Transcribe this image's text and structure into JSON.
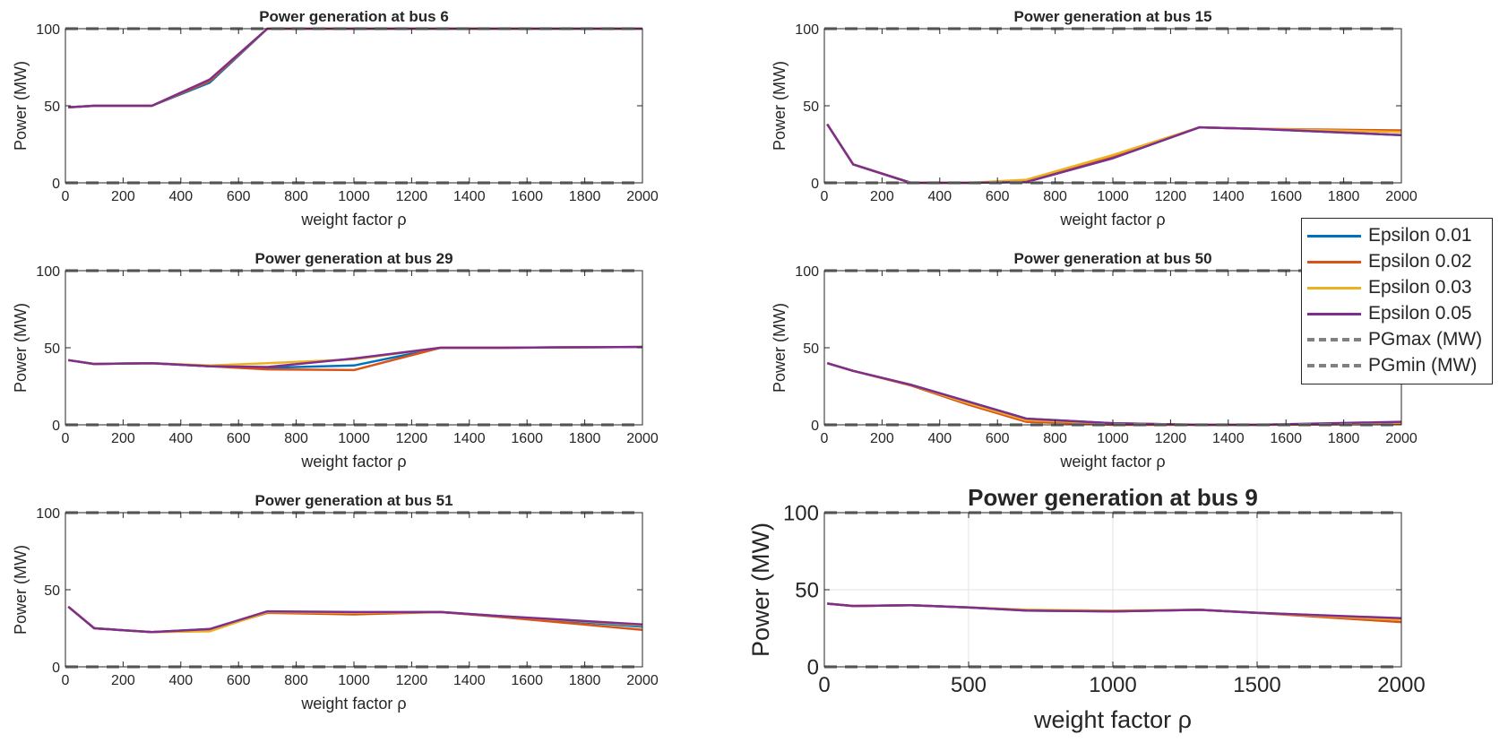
{
  "chart_data": [
    {
      "type": "line",
      "title": "Power generation at bus 6",
      "xlabel": "weight factor ρ",
      "ylabel": "Power (MW)",
      "xlim": [
        0,
        2000
      ],
      "ylim": [
        0,
        100
      ],
      "xticks": [
        0,
        200,
        400,
        600,
        800,
        1000,
        1200,
        1400,
        1600,
        1800,
        2000
      ],
      "yticks": [
        0,
        50,
        100
      ],
      "grid": false,
      "x": [
        10,
        100,
        300,
        500,
        700,
        1000,
        1300,
        1500,
        2000
      ],
      "series": [
        {
          "name": "Epsilon 0.01",
          "values": [
            49,
            50,
            50,
            65,
            100,
            100,
            100,
            100,
            100
          ]
        },
        {
          "name": "Epsilon 0.02",
          "values": [
            49,
            50,
            50,
            66,
            100,
            100,
            100,
            100,
            100
          ]
        },
        {
          "name": "Epsilon 0.03",
          "values": [
            49,
            50,
            50,
            67,
            100,
            100,
            100,
            100,
            100
          ]
        },
        {
          "name": "Epsilon 0.05",
          "values": [
            49,
            50,
            50,
            67,
            100,
            100,
            100,
            100,
            100
          ]
        }
      ],
      "pgmax": 100,
      "pgmin": 0
    },
    {
      "type": "line",
      "title": "Power generation at bus 15",
      "xlabel": "weight factor ρ",
      "ylabel": "Power (MW)",
      "xlim": [
        0,
        2000
      ],
      "ylim": [
        0,
        100
      ],
      "xticks": [
        0,
        200,
        400,
        600,
        800,
        1000,
        1200,
        1400,
        1600,
        1800,
        2000
      ],
      "yticks": [
        0,
        50,
        100
      ],
      "grid": false,
      "x": [
        10,
        100,
        300,
        500,
        700,
        1000,
        1300,
        1500,
        2000
      ],
      "series": [
        {
          "name": "Epsilon 0.01",
          "values": [
            38,
            12,
            0,
            0,
            0.5,
            16,
            36,
            35,
            31
          ]
        },
        {
          "name": "Epsilon 0.02",
          "values": [
            38,
            12,
            0,
            0,
            1,
            17,
            36,
            35,
            34
          ]
        },
        {
          "name": "Epsilon 0.03",
          "values": [
            38,
            12,
            0,
            0,
            2,
            18,
            36,
            35,
            33
          ]
        },
        {
          "name": "Epsilon 0.05",
          "values": [
            38,
            12,
            0,
            0,
            0.5,
            16,
            36,
            35,
            31
          ]
        }
      ],
      "pgmax": 100,
      "pgmin": 0
    },
    {
      "type": "line",
      "title": "Power generation at bus 29",
      "xlabel": "weight factor ρ",
      "ylabel": "Power (MW)",
      "xlim": [
        0,
        2000
      ],
      "ylim": [
        0,
        100
      ],
      "xticks": [
        0,
        200,
        400,
        600,
        800,
        1000,
        1200,
        1400,
        1600,
        1800,
        2000
      ],
      "yticks": [
        0,
        50,
        100
      ],
      "grid": false,
      "x": [
        10,
        100,
        300,
        500,
        700,
        1000,
        1300,
        1500,
        2000
      ],
      "series": [
        {
          "name": "Epsilon 0.01",
          "values": [
            42,
            39.5,
            40,
            38,
            37,
            38.5,
            50,
            50,
            50.5
          ]
        },
        {
          "name": "Epsilon 0.02",
          "values": [
            42,
            39.5,
            40,
            38,
            36,
            35.5,
            50,
            50,
            50.5
          ]
        },
        {
          "name": "Epsilon 0.03",
          "values": [
            42,
            39.5,
            40,
            38.5,
            40,
            42.5,
            50,
            50,
            50.5
          ]
        },
        {
          "name": "Epsilon 0.05",
          "values": [
            42,
            39.5,
            40,
            38,
            37.5,
            43,
            50,
            50,
            50.5
          ]
        }
      ],
      "pgmax": 100,
      "pgmin": 0
    },
    {
      "type": "line",
      "title": "Power generation at bus 50",
      "xlabel": "weight factor ρ",
      "ylabel": "Power (MW)",
      "xlim": [
        0,
        2000
      ],
      "ylim": [
        0,
        100
      ],
      "xticks": [
        0,
        200,
        400,
        600,
        800,
        1000,
        1200,
        1400,
        1600,
        1800,
        2000
      ],
      "yticks": [
        0,
        50,
        100
      ],
      "grid": false,
      "x": [
        10,
        100,
        300,
        500,
        700,
        1000,
        1300,
        1500,
        2000
      ],
      "series": [
        {
          "name": "Epsilon 0.01",
          "values": [
            40,
            35,
            26,
            15,
            4,
            1,
            0,
            0,
            1.5
          ]
        },
        {
          "name": "Epsilon 0.02",
          "values": [
            40,
            35,
            25.5,
            13,
            2,
            0,
            0,
            0,
            0.5
          ]
        },
        {
          "name": "Epsilon 0.03",
          "values": [
            40,
            35,
            26,
            14,
            3,
            1,
            0,
            0,
            1.5
          ]
        },
        {
          "name": "Epsilon 0.05",
          "values": [
            40,
            35,
            26,
            15,
            4,
            1,
            0,
            0,
            2
          ]
        }
      ],
      "pgmax": 100,
      "pgmin": 0
    },
    {
      "type": "line",
      "title": "Power generation at bus 51",
      "xlabel": "weight factor ρ",
      "ylabel": "Power (MW)",
      "xlim": [
        0,
        2000
      ],
      "ylim": [
        0,
        100
      ],
      "xticks": [
        0,
        200,
        400,
        600,
        800,
        1000,
        1200,
        1400,
        1600,
        1800,
        2000
      ],
      "yticks": [
        0,
        50,
        100
      ],
      "grid": false,
      "x": [
        10,
        100,
        300,
        500,
        700,
        1000,
        1300,
        1500,
        2000
      ],
      "series": [
        {
          "name": "Epsilon 0.01",
          "values": [
            39,
            25,
            22.5,
            24.5,
            35.5,
            35,
            35.5,
            33,
            26
          ]
        },
        {
          "name": "Epsilon 0.02",
          "values": [
            39,
            25,
            22.5,
            24,
            35,
            34,
            35.5,
            32.5,
            24
          ]
        },
        {
          "name": "Epsilon 0.03",
          "values": [
            39,
            25,
            22.5,
            23,
            35.5,
            35,
            35.5,
            33,
            27
          ]
        },
        {
          "name": "Epsilon 0.05",
          "values": [
            39,
            25,
            22.5,
            24.5,
            36,
            35.5,
            35.5,
            33,
            27.5
          ]
        }
      ],
      "pgmax": 100,
      "pgmin": 0
    },
    {
      "type": "line",
      "title": "Power generation at bus 9",
      "xlabel": "weight factor ρ",
      "ylabel": "Power (MW)",
      "xlim": [
        0,
        2000
      ],
      "ylim": [
        0,
        100
      ],
      "xticks": [
        0,
        500,
        1000,
        1500,
        2000
      ],
      "yticks": [
        0,
        50,
        100
      ],
      "grid": true,
      "x": [
        10,
        100,
        300,
        500,
        700,
        1000,
        1300,
        1500,
        2000
      ],
      "series": [
        {
          "name": "Epsilon 0.01",
          "values": [
            41,
            39.5,
            40,
            38.5,
            36.5,
            36,
            37,
            35,
            31
          ]
        },
        {
          "name": "Epsilon 0.02",
          "values": [
            41,
            39.5,
            40,
            38.5,
            37,
            36,
            37,
            35,
            29
          ]
        },
        {
          "name": "Epsilon 0.03",
          "values": [
            41,
            39.5,
            40,
            38.5,
            37,
            36.5,
            37,
            35,
            30.5
          ]
        },
        {
          "name": "Epsilon 0.05",
          "values": [
            41,
            39.5,
            40,
            38.5,
            36.5,
            36,
            37,
            35,
            31.5
          ]
        }
      ],
      "pgmax": 100,
      "pgmin": 0
    }
  ],
  "legend": {
    "placement": "right",
    "items": [
      {
        "label": "Epsilon 0.01",
        "color": "#0072BD",
        "style": "solid"
      },
      {
        "label": "Epsilon 0.02",
        "color": "#D95319",
        "style": "solid"
      },
      {
        "label": "Epsilon 0.03",
        "color": "#EDB120",
        "style": "solid"
      },
      {
        "label": "Epsilon 0.05",
        "color": "#7E2F8E",
        "style": "solid"
      },
      {
        "label": "PGmax (MW)",
        "color": "#808080",
        "style": "dashed"
      },
      {
        "label": "PGmin (MW)",
        "color": "#808080",
        "style": "dashed"
      }
    ]
  },
  "colors": {
    "series": [
      "#0072BD",
      "#D95319",
      "#EDB120",
      "#7E2F8E"
    ],
    "limits": "#808080",
    "axes": "#262626",
    "grid": "#e3e3e3"
  }
}
